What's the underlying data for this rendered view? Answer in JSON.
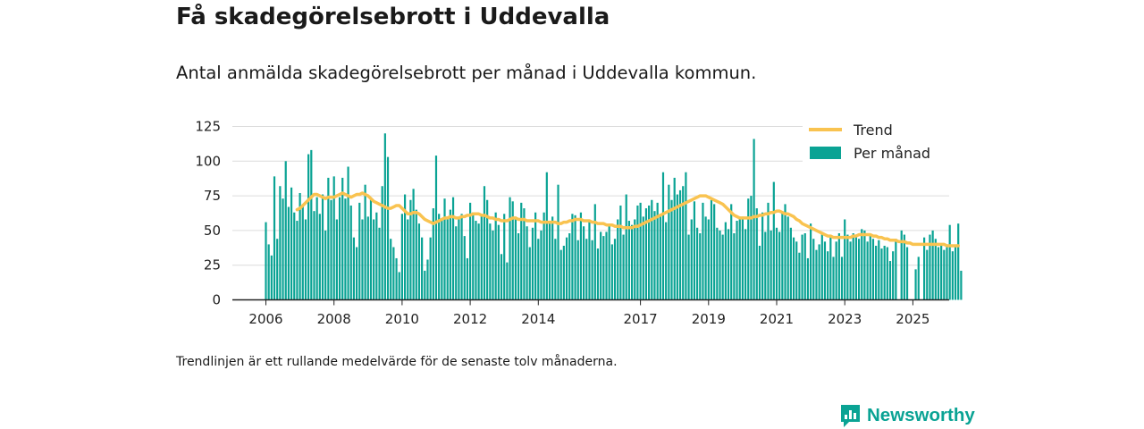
{
  "title": "Få skadegörelsebrott i Uddevalla",
  "subtitle": "Antal anmälda skadegörelsebrott per månad i Uddevalla kommun.",
  "note": "Trendlinjen är ett rullande medelvärde för de senaste tolv månaderna.",
  "brand": {
    "name": "Newsworthy",
    "icon": "newsworthy-logo-icon"
  },
  "colors": {
    "bars": "#0aa394",
    "trend": "#f9c350",
    "grid": "#dcdcdc",
    "axis": "#222222"
  },
  "chart_data": {
    "type": "bar",
    "title": "",
    "xlabel": "",
    "ylabel": "",
    "ylim": [
      0,
      125
    ],
    "yticks": [
      0,
      25,
      50,
      75,
      100,
      125
    ],
    "grid": true,
    "legend_position": "top-right",
    "start_month": "2006-01",
    "xticks": [
      {
        "label": "2006",
        "month": "2006-01"
      },
      {
        "label": "2008",
        "month": "2008-01"
      },
      {
        "label": "2010",
        "month": "2010-01"
      },
      {
        "label": "2012",
        "month": "2012-01"
      },
      {
        "label": "2014",
        "month": "2014-01"
      },
      {
        "label": "2017",
        "month": "2017-01"
      },
      {
        "label": "2019",
        "month": "2019-01"
      },
      {
        "label": "2021",
        "month": "2021-01"
      },
      {
        "label": "2023",
        "month": "2023-01"
      },
      {
        "label": "2025",
        "month": "2025-01"
      }
    ],
    "series": [
      {
        "name": "Per månad",
        "kind": "bar",
        "values": [
          56,
          40,
          32,
          89,
          44,
          82,
          73,
          100,
          67,
          81,
          63,
          57,
          77,
          68,
          58,
          105,
          108,
          64,
          74,
          62,
          76,
          50,
          88,
          72,
          89,
          58,
          74,
          88,
          73,
          96,
          68,
          45,
          38,
          70,
          58,
          83,
          60,
          74,
          58,
          63,
          52,
          82,
          120,
          103,
          44,
          38,
          30,
          20,
          62,
          76,
          58,
          72,
          80,
          65,
          55,
          45,
          21,
          29,
          45,
          66,
          104,
          62,
          58,
          73,
          60,
          65,
          74,
          53,
          59,
          62,
          46,
          30,
          70,
          63,
          57,
          55,
          61,
          82,
          72,
          55,
          50,
          63,
          54,
          33,
          62,
          27,
          74,
          71,
          60,
          48,
          70,
          66,
          53,
          38,
          52,
          63,
          44,
          50,
          63,
          92,
          55,
          60,
          44,
          83,
          36,
          39,
          45,
          48,
          62,
          61,
          43,
          63,
          53,
          44,
          58,
          43,
          69,
          37,
          49,
          46,
          49,
          55,
          40,
          44,
          58,
          68,
          47,
          76,
          57,
          54,
          58,
          68,
          70,
          60,
          66,
          68,
          72,
          64,
          70,
          61,
          92,
          56,
          83,
          72,
          88,
          76,
          79,
          82,
          92,
          47,
          58,
          71,
          52,
          48,
          70,
          60,
          58,
          72,
          69,
          52,
          50,
          47,
          56,
          51,
          69,
          48,
          57,
          60,
          60,
          51,
          73,
          75,
          116,
          66,
          39,
          63,
          49,
          70,
          50,
          85,
          52,
          49,
          63,
          69,
          60,
          52,
          45,
          42,
          34,
          47,
          48,
          30,
          55,
          44,
          36,
          40,
          48,
          42,
          35,
          45,
          31,
          42,
          48,
          31,
          58,
          47,
          42,
          48,
          46,
          44,
          51,
          50,
          42,
          47,
          44,
          39,
          43,
          37,
          39,
          38,
          28,
          35,
          44,
          0,
          50,
          47,
          38,
          0,
          0,
          22,
          31,
          0,
          45,
          36,
          47,
          50,
          44,
          38,
          40,
          36,
          38,
          54,
          35,
          38,
          55,
          21
        ]
      },
      {
        "name": "Trend",
        "kind": "line",
        "start_month": "2006-12",
        "values": [
          65,
          66,
          68,
          70,
          72,
          74,
          76,
          76,
          75,
          74,
          73,
          74,
          74,
          74,
          75,
          76,
          77,
          76,
          75,
          74,
          75,
          76,
          76,
          77,
          76,
          75,
          73,
          71,
          70,
          69,
          68,
          67,
          66,
          66,
          67,
          68,
          68,
          66,
          64,
          62,
          62,
          63,
          63,
          62,
          60,
          58,
          57,
          56,
          55,
          56,
          57,
          58,
          59,
          59,
          60,
          60,
          59,
          59,
          60,
          60,
          61,
          61,
          62,
          62,
          62,
          61,
          61,
          60,
          59,
          59,
          58,
          58,
          57,
          57,
          57,
          58,
          59,
          59,
          58,
          58,
          58,
          57,
          57,
          57,
          57,
          57,
          56,
          56,
          56,
          56,
          56,
          56,
          55,
          55,
          56,
          56,
          57,
          57,
          58,
          58,
          58,
          57,
          57,
          57,
          56,
          56,
          55,
          55,
          55,
          54,
          54,
          54,
          53,
          53,
          53,
          52,
          52,
          52,
          52,
          53,
          53,
          54,
          55,
          56,
          57,
          58,
          59,
          60,
          61,
          62,
          63,
          64,
          65,
          66,
          67,
          68,
          69,
          70,
          71,
          72,
          73,
          74,
          75,
          75,
          75,
          74,
          73,
          72,
          71,
          70,
          69,
          67,
          65,
          63,
          61,
          60,
          59,
          59,
          59,
          59,
          59,
          60,
          60,
          61,
          61,
          62,
          62,
          63,
          63,
          64,
          64,
          63,
          62,
          62,
          61,
          60,
          58,
          57,
          55,
          54,
          53,
          52,
          51,
          50,
          49,
          48,
          47,
          46,
          46,
          45,
          45,
          45,
          45,
          45,
          45,
          45,
          46,
          46,
          47,
          47,
          47,
          47,
          47,
          46,
          46,
          45,
          45,
          44,
          44,
          43,
          43,
          43,
          42,
          42,
          42,
          41,
          41,
          40,
          40,
          40,
          40,
          40,
          40,
          40,
          40,
          40,
          40,
          40,
          40,
          39,
          39,
          39,
          39,
          39
        ]
      }
    ]
  }
}
